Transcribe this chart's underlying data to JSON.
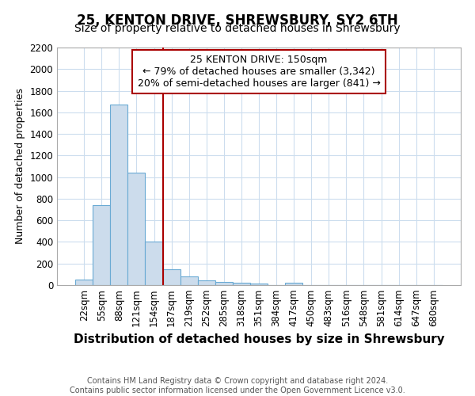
{
  "title": "25, KENTON DRIVE, SHREWSBURY, SY2 6TH",
  "subtitle": "Size of property relative to detached houses in Shrewsbury",
  "xlabel": "Distribution of detached houses by size in Shrewsbury",
  "ylabel": "Number of detached properties",
  "categories": [
    "22sqm",
    "55sqm",
    "88sqm",
    "121sqm",
    "154sqm",
    "187sqm",
    "219sqm",
    "252sqm",
    "285sqm",
    "318sqm",
    "351sqm",
    "384sqm",
    "417sqm",
    "450sqm",
    "483sqm",
    "516sqm",
    "548sqm",
    "581sqm",
    "614sqm",
    "647sqm",
    "680sqm"
  ],
  "values": [
    50,
    740,
    1670,
    1040,
    400,
    148,
    80,
    42,
    30,
    22,
    18,
    0,
    20,
    0,
    0,
    0,
    0,
    0,
    0,
    0,
    0
  ],
  "bar_color": "#ccdcec",
  "bar_edge_color": "#6aaad4",
  "vline_color": "#aa0000",
  "annotation_text": "25 KENTON DRIVE: 150sqm\n← 79% of detached houses are smaller (3,342)\n20% of semi-detached houses are larger (841) →",
  "annotation_box_color": "#ffffff",
  "annotation_box_edge": "#aa0000",
  "ylim": [
    0,
    2200
  ],
  "yticks": [
    0,
    200,
    400,
    600,
    800,
    1000,
    1200,
    1400,
    1600,
    1800,
    2000,
    2200
  ],
  "title_fontsize": 12,
  "subtitle_fontsize": 10,
  "xlabel_fontsize": 11,
  "ylabel_fontsize": 9,
  "annot_fontsize": 9,
  "tick_fontsize": 8.5,
  "footer_text": "Contains HM Land Registry data © Crown copyright and database right 2024.\nContains public sector information licensed under the Open Government Licence v3.0.",
  "background_color": "#ffffff",
  "grid_color": "#ccddee"
}
